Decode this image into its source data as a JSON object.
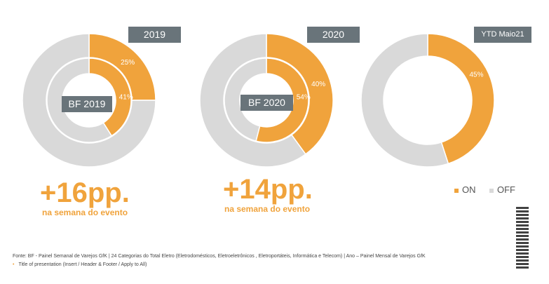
{
  "colors": {
    "on": "#f0a33c",
    "off": "#d9d9d9"
  },
  "chart_data": [
    {
      "type": "pie",
      "title": "2019",
      "center_label": "BF 2019",
      "rings": [
        {
          "name": "2019",
          "series": [
            {
              "name": "ON",
              "value": 25
            },
            {
              "name": "OFF",
              "value": 75
            }
          ],
          "label": "25%"
        },
        {
          "name": "BF 2019",
          "series": [
            {
              "name": "ON",
              "value": 41
            },
            {
              "name": "OFF",
              "value": 59
            }
          ],
          "label": "41%"
        }
      ]
    },
    {
      "type": "pie",
      "title": "2020",
      "center_label": "BF 2020",
      "rings": [
        {
          "name": "2020",
          "series": [
            {
              "name": "ON",
              "value": 40
            },
            {
              "name": "OFF",
              "value": 60
            }
          ],
          "label": "40%"
        },
        {
          "name": "BF 2020",
          "series": [
            {
              "name": "ON",
              "value": 54
            },
            {
              "name": "OFF",
              "value": 46
            }
          ],
          "label": "54%"
        }
      ]
    },
    {
      "type": "pie",
      "title": "YTD Maio21",
      "rings": [
        {
          "name": "YTD Maio21",
          "series": [
            {
              "name": "ON",
              "value": 45
            },
            {
              "name": "OFF",
              "value": 55
            }
          ],
          "label": "45%"
        }
      ]
    }
  ],
  "highlights": [
    {
      "value": "+16pp.",
      "caption": "na semana do evento"
    },
    {
      "value": "+14pp.",
      "caption": "na semana do evento"
    }
  ],
  "legend": [
    {
      "label": "ON"
    },
    {
      "label": "OFF"
    }
  ],
  "footer": {
    "source": "Fonte: BF - Painel Semanal de Varejos GfK | 24 Categorias do Total Eletro (Eletrodomésticos, Eletroeletrônicos , Eletroportáteis, Informática e Telecom) | Ano – Painel Mensal de Varejos GfK",
    "title": "Title of presentation (Insert / Header & Footer / Apply to All)"
  }
}
